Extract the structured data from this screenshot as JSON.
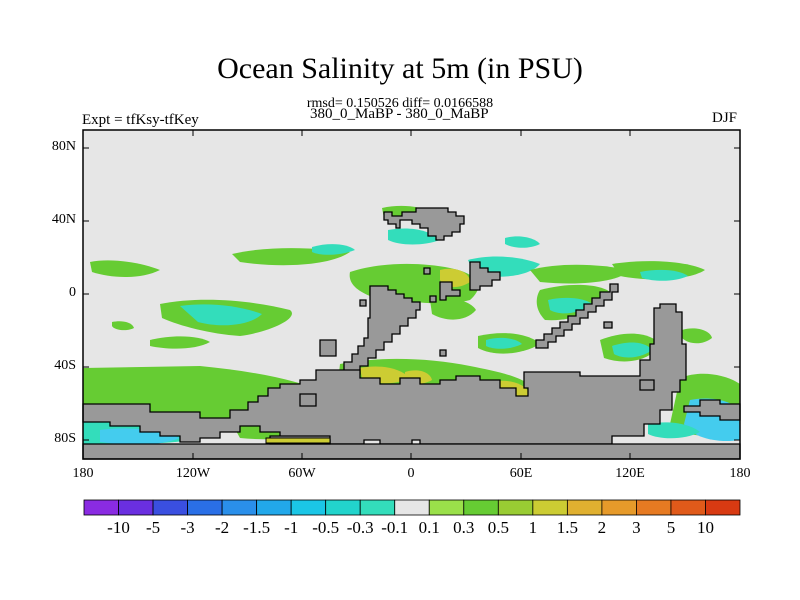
{
  "title": "Ocean Salinity at 5m (in PSU)",
  "stats": "rmsd= 0.150526 diff= 0.0166588",
  "experiment": "Expt = tfKsy-tfKey",
  "runs": "380_0_MaBP - 380_0_MaBP",
  "season": "DJF",
  "colors": {
    "land": "#999999",
    "ocean_neutral": "#e6e6e6",
    "green": "#66cc33",
    "cyan": "#33ddbb",
    "yellow": "#cccc33",
    "light_cyan": "#44ccee"
  },
  "axes": {
    "y_ticks": [
      "80N",
      "40N",
      "0",
      "40S",
      "80S"
    ],
    "x_ticks": [
      "180",
      "120W",
      "60W",
      "0",
      "60E",
      "120E",
      "180"
    ]
  },
  "colorbar": {
    "labels": [
      "-10",
      "-5",
      "-3",
      "-2",
      "-1.5",
      "-1",
      "-0.5",
      "-0.3",
      "-0.1",
      "0.1",
      "0.3",
      "0.5",
      "1",
      "1.5",
      "2",
      "3",
      "5",
      "10"
    ],
    "colors": [
      "#8a2be2",
      "#6a2fe0",
      "#3a4fe0",
      "#2a6fe6",
      "#2a8fea",
      "#22a8ea",
      "#1bc6e6",
      "#22d4cc",
      "#33ddbb",
      "#e6e6e6",
      "#9ae04a",
      "#66cc33",
      "#99cc33",
      "#cccc33",
      "#e0b030",
      "#e69a2a",
      "#e67a22",
      "#e05a1a",
      "#d83a12"
    ]
  }
}
